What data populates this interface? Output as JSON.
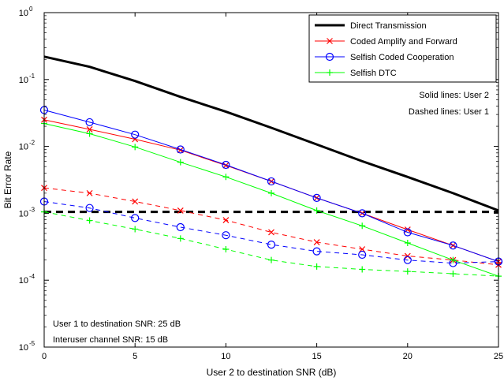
{
  "chart_data": {
    "type": "line",
    "title": "",
    "xlabel": "User 2 to destination SNR (dB)",
    "ylabel": "Bit Error Rate",
    "xlim": [
      0,
      25
    ],
    "ylim": [
      1e-05,
      1
    ],
    "yscale": "log",
    "grid": false,
    "legend_position": "top-right",
    "x_ticks": [
      0,
      5,
      10,
      15,
      20,
      25
    ],
    "x_tick_labels": [
      "0",
      "5",
      "10",
      "15",
      "20",
      "25"
    ],
    "y_ticks": [
      1e-05,
      0.0001,
      0.001,
      0.01,
      0.1,
      1
    ],
    "y_tick_labels": [
      {
        "base": "10",
        "exp": "-5"
      },
      {
        "base": "10",
        "exp": "-4"
      },
      {
        "base": "10",
        "exp": "-3"
      },
      {
        "base": "10",
        "exp": "-2"
      },
      {
        "base": "10",
        "exp": "-1"
      },
      {
        "base": "10",
        "exp": "0"
      }
    ],
    "x": [
      0,
      2.5,
      5,
      7.5,
      10,
      12.5,
      15,
      17.5,
      20,
      22.5,
      25
    ],
    "series": [
      {
        "name": "Direct Transmission",
        "user": "User 2",
        "style": "solid",
        "marker": "none",
        "color": "#000000",
        "width": 3,
        "values": [
          0.22,
          0.155,
          0.095,
          0.055,
          0.033,
          0.019,
          0.0107,
          0.006,
          0.0035,
          0.002,
          0.0011
        ]
      },
      {
        "name": "",
        "user": "User 1",
        "style": "dashed",
        "marker": "none",
        "color": "#000000",
        "width": 3,
        "values": [
          0.00105,
          0.00105,
          0.00105,
          0.00105,
          0.00105,
          0.00105,
          0.00105,
          0.00105,
          0.00105,
          0.00105,
          0.00105
        ]
      },
      {
        "name": "Coded Amplify and Forward",
        "user": "User 2",
        "style": "solid",
        "marker": "x",
        "color": "#ff0000",
        "width": 1,
        "values": [
          0.025,
          0.018,
          0.0128,
          0.0088,
          0.0052,
          0.003,
          0.0017,
          0.001,
          0.00057,
          0.00033,
          0.00019
        ]
      },
      {
        "name": "",
        "user": "User 1",
        "style": "dashed",
        "marker": "x",
        "color": "#ff0000",
        "width": 1,
        "values": [
          0.0024,
          0.002,
          0.0015,
          0.0011,
          0.00079,
          0.00052,
          0.00037,
          0.00029,
          0.00023,
          0.0002,
          0.00017
        ]
      },
      {
        "name": "Selfish Coded Cooperation",
        "user": "User 2",
        "style": "solid",
        "marker": "o",
        "color": "#0000ff",
        "width": 1,
        "values": [
          0.035,
          0.023,
          0.015,
          0.009,
          0.0053,
          0.003,
          0.0017,
          0.001,
          0.00052,
          0.00033,
          0.00019
        ]
      },
      {
        "name": "",
        "user": "User 1",
        "style": "dashed",
        "marker": "o",
        "color": "#0000ff",
        "width": 1,
        "values": [
          0.0015,
          0.0012,
          0.00085,
          0.00062,
          0.00047,
          0.00034,
          0.00027,
          0.00024,
          0.0002,
          0.00018,
          0.00019
        ]
      },
      {
        "name": "Selfish DTC",
        "user": "User 2",
        "style": "solid",
        "marker": "+",
        "color": "#00ff00",
        "width": 1,
        "values": [
          0.022,
          0.0155,
          0.0098,
          0.0058,
          0.0035,
          0.002,
          0.0011,
          0.00065,
          0.00036,
          0.0002,
          0.000115
        ]
      },
      {
        "name": "",
        "user": "User 1",
        "style": "dashed",
        "marker": "+",
        "color": "#00ff00",
        "width": 1,
        "values": [
          0.00105,
          0.00078,
          0.00058,
          0.00042,
          0.00029,
          0.0002,
          0.00016,
          0.000145,
          0.000135,
          0.000125,
          0.000115
        ]
      }
    ],
    "annotations": {
      "solid_note": "Solid lines: User 2",
      "dashed_note": "Dashed lines: User 1",
      "snr_note": "User 1 to destination SNR: 25 dB",
      "interuser_note": "Interuser channel SNR: 15 dB"
    }
  }
}
